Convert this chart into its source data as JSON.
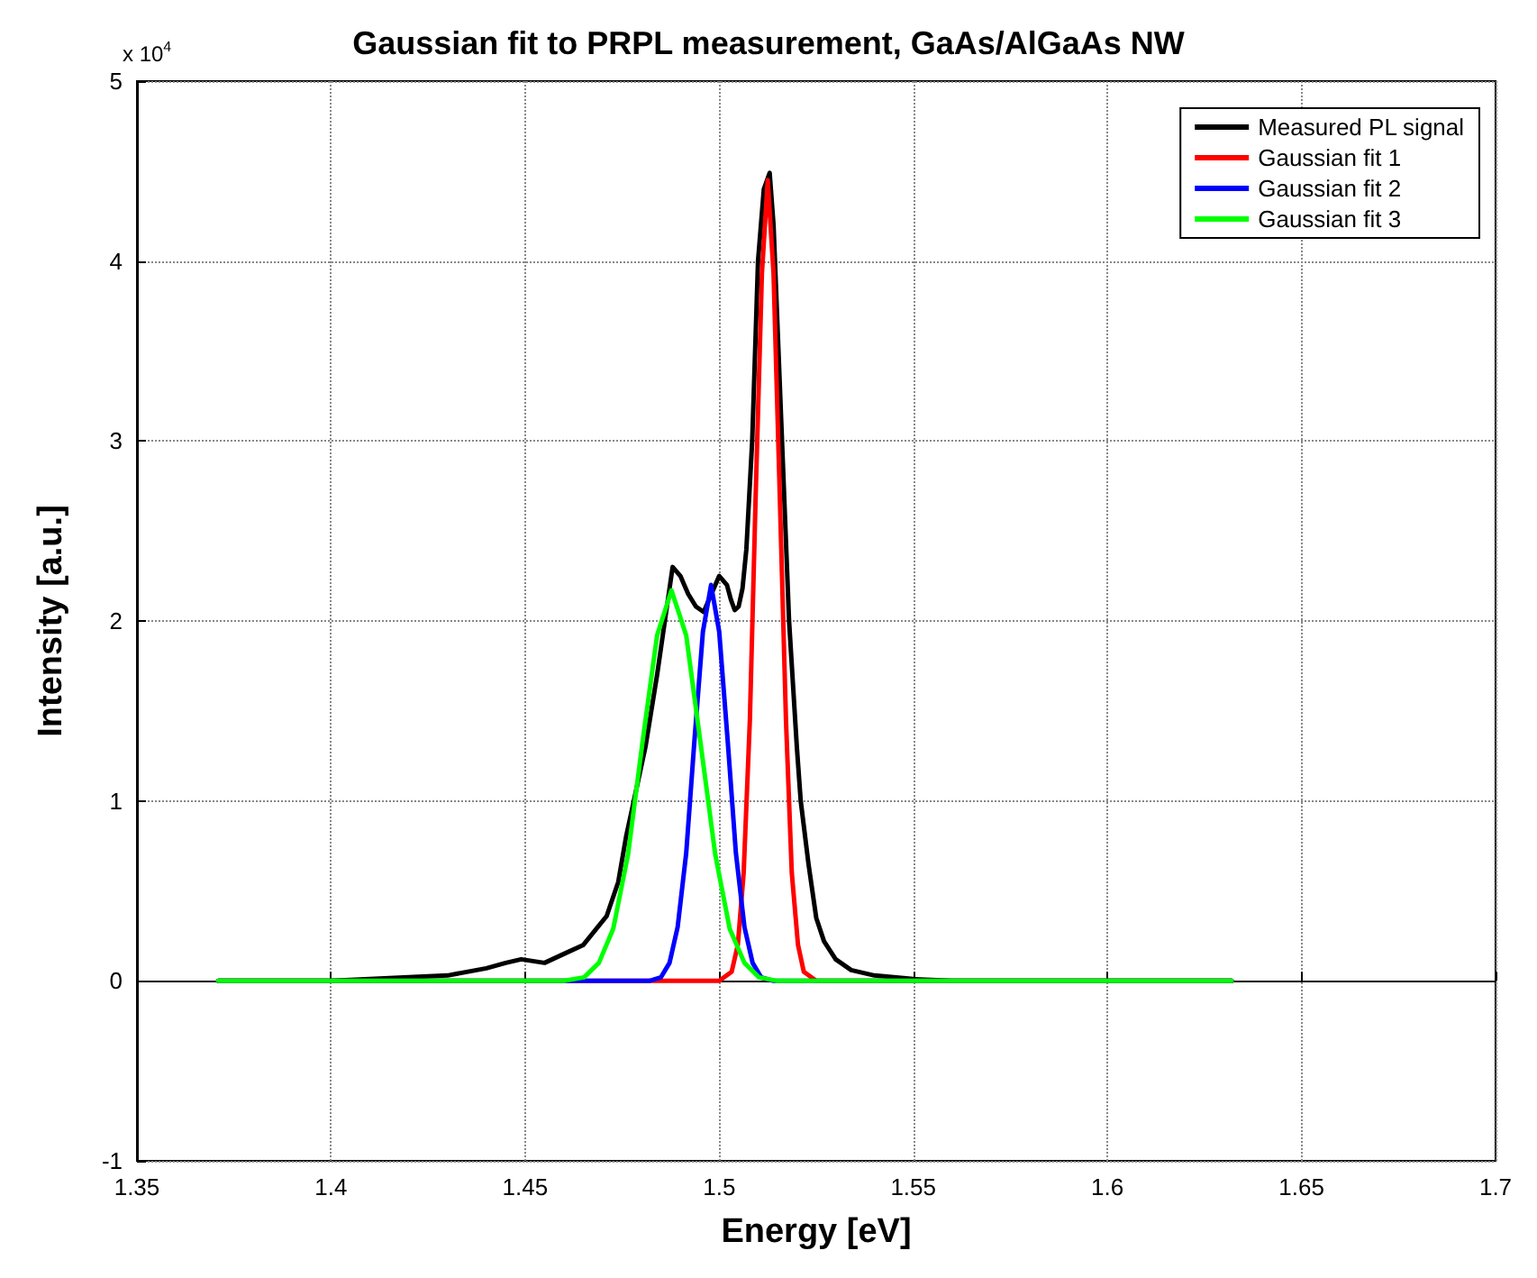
{
  "chart_data": {
    "type": "line",
    "title": "Gaussian fit to PRPL measurement, GaAs/AlGaAs NW",
    "xlabel": "Energy [eV]",
    "ylabel": "Intensity [a.u.]",
    "annotations": [
      "x 10$^{4}$"
    ],
    "xlim": [
      1.35,
      1.7
    ],
    "xticks": [
      1.35,
      1.4,
      1.45,
      1.5,
      1.55,
      1.6,
      1.65,
      1.7
    ],
    "ylim": [
      -1,
      5
    ],
    "yticks": [
      -1,
      0,
      1,
      2,
      3,
      4,
      5
    ],
    "grid": true,
    "legend": "top right",
    "marker": "none",
    "line_style": "solid",
    "series": [
      {
        "name": "Measured PL signal",
        "color": "#000000",
        "x": [
          1.371,
          1.4,
          1.42,
          1.43,
          1.44,
          1.445,
          1.449,
          1.455,
          1.46,
          1.465,
          1.471,
          1.474,
          1.476,
          1.478,
          1.481,
          1.484,
          1.486,
          1.488,
          1.49,
          1.492,
          1.494,
          1.496,
          1.498,
          1.5,
          1.502,
          1.503,
          1.504,
          1.505,
          1.506,
          1.507,
          1.5085,
          1.51,
          1.5115,
          1.513,
          1.514,
          1.516,
          1.518,
          1.52,
          1.521,
          1.523,
          1.525,
          1.527,
          1.53,
          1.534,
          1.54,
          1.55,
          1.56,
          1.6,
          1.632
        ],
        "values": [
          0,
          0,
          0.02,
          0.03,
          0.07,
          0.1,
          0.12,
          0.1,
          0.15,
          0.2,
          0.36,
          0.55,
          0.8,
          1.0,
          1.3,
          1.7,
          2.0,
          2.3,
          2.25,
          2.15,
          2.08,
          2.05,
          2.15,
          2.25,
          2.2,
          2.12,
          2.06,
          2.08,
          2.18,
          2.4,
          3.0,
          4.0,
          4.4,
          4.49,
          4.2,
          3.1,
          2.0,
          1.3,
          1.0,
          0.65,
          0.35,
          0.22,
          0.12,
          0.06,
          0.03,
          0.01,
          0,
          0,
          0
        ]
      },
      {
        "name": "Gaussian fit 1",
        "color": "#ff0000",
        "x": [
          1.371,
          1.5,
          1.5032,
          1.5048,
          1.5063,
          1.5079,
          1.5094,
          1.511,
          1.5125,
          1.514,
          1.5156,
          1.5172,
          1.5187,
          1.5203,
          1.5218,
          1.525,
          1.632
        ],
        "values": [
          0,
          0,
          0.05,
          0.2,
          0.6,
          1.45,
          2.7,
          3.93,
          4.45,
          3.93,
          2.7,
          1.45,
          0.6,
          0.2,
          0.05,
          0,
          0
        ]
      },
      {
        "name": "Gaussian fit 2",
        "color": "#0000ff",
        "x": [
          1.371,
          1.482,
          1.485,
          1.4872,
          1.4893,
          1.4915,
          1.4936,
          1.4958,
          1.4979,
          1.5,
          1.5022,
          1.5043,
          1.5065,
          1.5086,
          1.5108,
          1.514,
          1.632
        ],
        "values": [
          0,
          0,
          0.02,
          0.1,
          0.3,
          0.71,
          1.33,
          1.94,
          2.2,
          1.94,
          1.33,
          0.71,
          0.3,
          0.1,
          0.02,
          0,
          0
        ]
      },
      {
        "name": "Gaussian fit 3",
        "color": "#00ff00",
        "x": [
          1.371,
          1.46,
          1.4652,
          1.469,
          1.4727,
          1.4765,
          1.4802,
          1.484,
          1.4877,
          1.4915,
          1.4952,
          1.499,
          1.5027,
          1.5065,
          1.5102,
          1.515,
          1.632
        ],
        "values": [
          0,
          0,
          0.02,
          0.1,
          0.29,
          0.7,
          1.32,
          1.92,
          2.17,
          1.92,
          1.32,
          0.7,
          0.29,
          0.1,
          0.02,
          0,
          0
        ]
      }
    ]
  }
}
